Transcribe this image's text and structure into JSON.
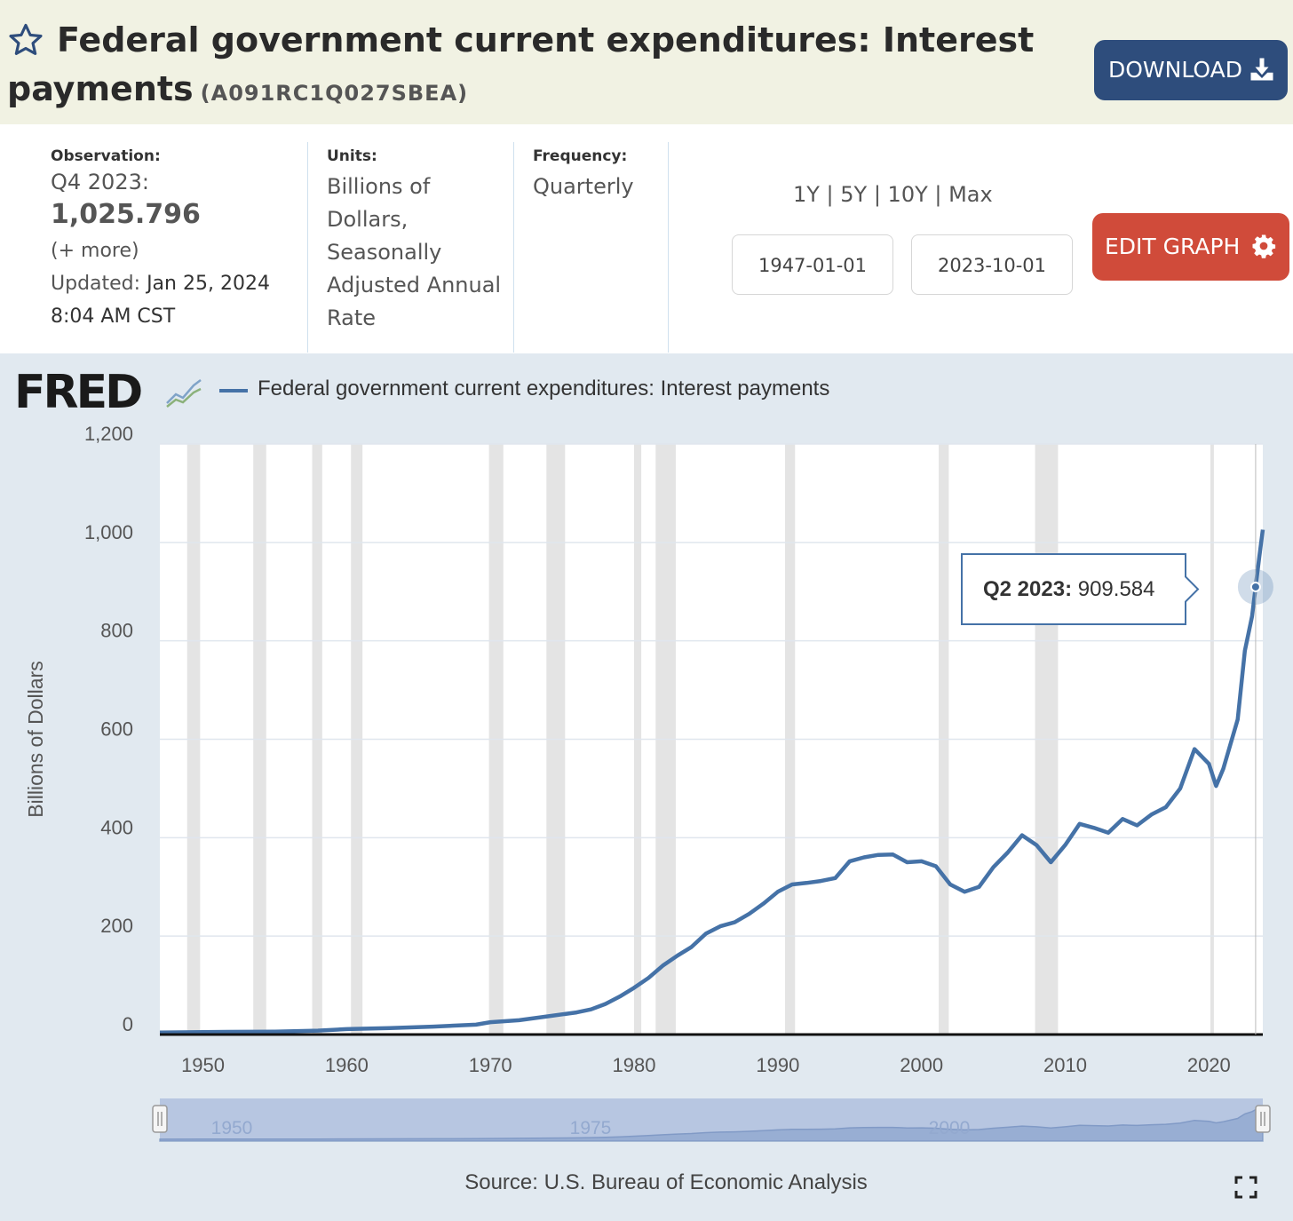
{
  "header": {
    "title": "Federal government current expenditures: Interest payments",
    "series_id": "(A091RC1Q027SBEA)",
    "download_label": "DOWNLOAD"
  },
  "meta": {
    "observation_label": "Observation:",
    "observation_period": "Q4 2023:",
    "observation_value": "1,025.796",
    "more_label": "(+ more)",
    "updated_label": "Updated:",
    "updated_date": "Jan 25, 2024",
    "updated_time": "8:04 AM CST",
    "units_label": "Units:",
    "units_value": "Billions of Dollars, Seasonally Adjusted Annual Rate",
    "frequency_label": "Frequency:",
    "frequency_value": "Quarterly"
  },
  "controls": {
    "range_options": "1Y | 5Y | 10Y | Max",
    "start_date": "1947-01-01",
    "end_date": "2023-10-01",
    "edit_label": "EDIT GRAPH"
  },
  "chart_data": {
    "type": "line",
    "title": "",
    "legend": "Federal government current expenditures: Interest payments",
    "ylabel": "Billions of Dollars",
    "xlabel": "",
    "xlim": [
      1947.0,
      2023.75
    ],
    "ylim": [
      0,
      1200
    ],
    "yticks": [
      0,
      200,
      400,
      600,
      800,
      1000,
      1200
    ],
    "ytick_labels": [
      "0",
      "200",
      "400",
      "600",
      "800",
      "1,000",
      "1,200"
    ],
    "xticks": [
      1950,
      1960,
      1970,
      1980,
      1990,
      2000,
      2010,
      2020
    ],
    "recessions": [
      [
        1948.9,
        1949.8
      ],
      [
        1953.5,
        1954.4
      ],
      [
        1957.6,
        1958.3
      ],
      [
        1960.3,
        1961.1
      ],
      [
        1969.9,
        1970.9
      ],
      [
        1973.9,
        1975.2
      ],
      [
        1980.0,
        1980.5
      ],
      [
        1981.5,
        1982.9
      ],
      [
        1990.5,
        1991.2
      ],
      [
        2001.2,
        2001.9
      ],
      [
        2007.9,
        2009.5
      ],
      [
        2020.1,
        2020.3
      ]
    ],
    "series": [
      {
        "name": "Federal government current expenditures: Interest payments",
        "color": "#4572a7",
        "x": [
          1947,
          1950,
          1955,
          1958,
          1960,
          1963,
          1966,
          1969,
          1970,
          1972,
          1974,
          1976,
          1977,
          1978,
          1979,
          1980,
          1981,
          1982,
          1983,
          1984,
          1985,
          1986,
          1987,
          1988,
          1989,
          1990,
          1991,
          1992,
          1993,
          1994,
          1995,
          1996,
          1997,
          1998,
          1999,
          2000,
          2001,
          2002,
          2003,
          2004,
          2005,
          2006,
          2007,
          2008,
          2009,
          2010,
          2011,
          2012,
          2013,
          2014,
          2015,
          2016,
          2017,
          2018,
          2019,
          2020,
          2020.5,
          2021,
          2022,
          2022.5,
          2023,
          2023.25,
          2023.5,
          2023.75
        ],
        "y": [
          4,
          5,
          6,
          8,
          11,
          13,
          16,
          20,
          25,
          29,
          37,
          45,
          51,
          62,
          77,
          95,
          115,
          140,
          160,
          178,
          205,
          220,
          228,
          245,
          266,
          290,
          305,
          308,
          312,
          318,
          352,
          360,
          365,
          366,
          350,
          352,
          342,
          305,
          290,
          300,
          340,
          370,
          405,
          385,
          350,
          385,
          428,
          420,
          410,
          438,
          425,
          447,
          462,
          500,
          580,
          550,
          505,
          540,
          640,
          780,
          850,
          909.584,
          970,
          1025.796
        ]
      }
    ],
    "tooltip": {
      "label": "Q2 2023:",
      "value": "909.584",
      "x": 2023.25,
      "y": 909.584
    },
    "navigator_labels": [
      "1950",
      "1975",
      "2000"
    ]
  },
  "footer": {
    "source": "Source: U.S. Bureau of Economic Analysis"
  }
}
